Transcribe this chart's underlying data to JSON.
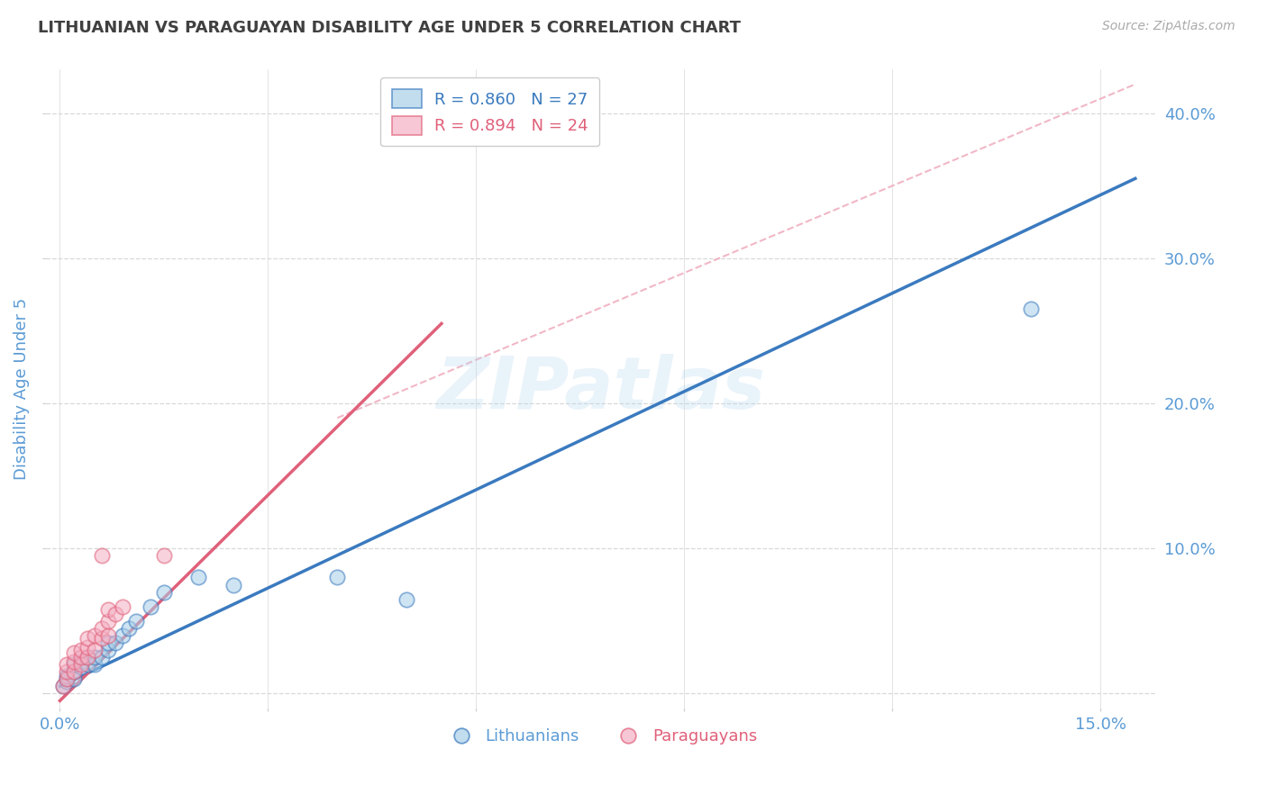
{
  "title": "LITHUANIAN VS PARAGUAYAN DISABILITY AGE UNDER 5 CORRELATION CHART",
  "source": "Source: ZipAtlas.com",
  "xlabel_ticks": [
    0.0,
    0.03,
    0.06,
    0.09,
    0.12,
    0.15
  ],
  "xlabel_labels_show": [
    "0.0%",
    "",
    "",
    "",
    "",
    "15.0%"
  ],
  "ylabel_ticks": [
    0.0,
    0.1,
    0.2,
    0.3,
    0.4
  ],
  "ylabel_labels": [
    "",
    "10.0%",
    "20.0%",
    "30.0%",
    "40.0%"
  ],
  "ylabel_label": "Disability Age Under 5",
  "xlim": [
    -0.002,
    0.158
  ],
  "ylim": [
    -0.01,
    0.43
  ],
  "blue_scatter_x": [
    0.0005,
    0.001,
    0.001,
    0.001,
    0.002,
    0.002,
    0.002,
    0.003,
    0.003,
    0.004,
    0.004,
    0.005,
    0.005,
    0.006,
    0.007,
    0.007,
    0.008,
    0.009,
    0.01,
    0.011,
    0.013,
    0.015,
    0.02,
    0.025,
    0.04,
    0.05,
    0.14
  ],
  "blue_scatter_y": [
    0.005,
    0.008,
    0.01,
    0.012,
    0.01,
    0.015,
    0.02,
    0.018,
    0.022,
    0.02,
    0.025,
    0.02,
    0.025,
    0.025,
    0.03,
    0.035,
    0.035,
    0.04,
    0.045,
    0.05,
    0.06,
    0.07,
    0.08,
    0.075,
    0.08,
    0.065,
    0.265
  ],
  "pink_scatter_x": [
    0.0005,
    0.001,
    0.001,
    0.001,
    0.002,
    0.002,
    0.002,
    0.003,
    0.003,
    0.003,
    0.004,
    0.004,
    0.004,
    0.005,
    0.005,
    0.006,
    0.006,
    0.007,
    0.007,
    0.007,
    0.008,
    0.009,
    0.015,
    0.006
  ],
  "pink_scatter_y": [
    0.005,
    0.01,
    0.015,
    0.02,
    0.015,
    0.022,
    0.028,
    0.02,
    0.025,
    0.03,
    0.025,
    0.032,
    0.038,
    0.03,
    0.04,
    0.038,
    0.045,
    0.04,
    0.05,
    0.058,
    0.055,
    0.06,
    0.095,
    0.095
  ],
  "blue_line_x": [
    0.0,
    0.155
  ],
  "blue_line_y": [
    0.005,
    0.355
  ],
  "pink_line_x": [
    0.0,
    0.055
  ],
  "pink_line_y": [
    -0.005,
    0.255
  ],
  "diag_line_x": [
    0.04,
    0.155
  ],
  "diag_line_y": [
    0.19,
    0.42
  ],
  "blue_color": "#a8cfe8",
  "blue_line_color": "#3a7abf",
  "pink_color": "#f4b0c4",
  "pink_line_color": "#e0607a",
  "diag_color": "#f0b0c0",
  "bg_color": "#ffffff",
  "grid_color": "#d8d8d8",
  "title_color": "#404040",
  "axis_label_color": "#5b9bd5",
  "legend_blue_text": "R = 0.860   N = 27",
  "legend_pink_text": "R = 0.894   N = 24",
  "legend_label_blue": "Lithuanians",
  "legend_label_pink": "Paraguayans"
}
